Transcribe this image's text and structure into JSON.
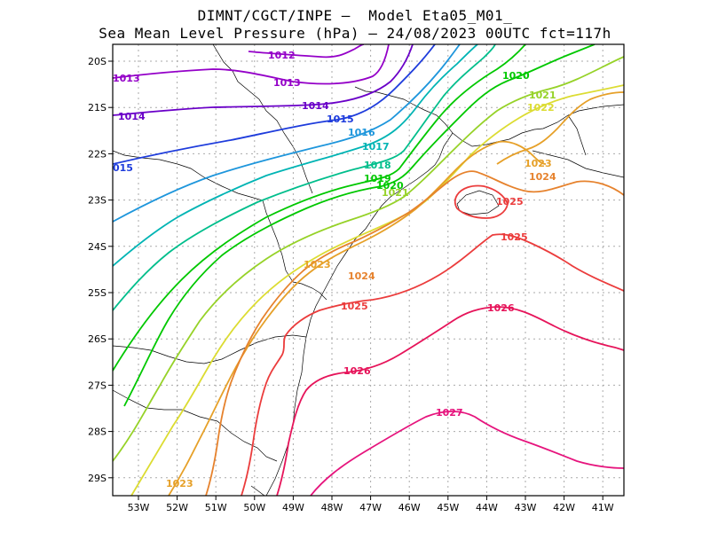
{
  "title": {
    "line1": "DIMNT/CGCT/INPE –  Model Eta05_M01_",
    "line2": "Sea Mean Level Pressure (hPa) – 24/08/2023 00UTC fct=117h"
  },
  "axes": {
    "lat_labels": [
      "20S",
      "21S",
      "22S",
      "23S",
      "24S",
      "25S",
      "26S",
      "27S",
      "28S",
      "29S"
    ],
    "lon_labels": [
      "53W",
      "52W",
      "51W",
      "50W",
      "49W",
      "48W",
      "47W",
      "46W",
      "45W",
      "44W",
      "43W",
      "42W",
      "41W"
    ]
  },
  "contour_labels": [
    {
      "text": "1012",
      "color": "#9400c8"
    },
    {
      "text": "1013",
      "color": "#9400c8"
    },
    {
      "text": "1013",
      "color": "#9400c8"
    },
    {
      "text": "1014",
      "color": "#6a00c8"
    },
    {
      "text": "1014",
      "color": "#6a00c8"
    },
    {
      "text": "1015",
      "color": "#1e3cdc"
    },
    {
      "text": "015",
      "color": "#1e3cdc"
    },
    {
      "text": "1016",
      "color": "#1e96dc"
    },
    {
      "text": "1017",
      "color": "#00b4b4"
    },
    {
      "text": "1018",
      "color": "#00be8c"
    },
    {
      "text": "1019",
      "color": "#00c800"
    },
    {
      "text": "1020",
      "color": "#00c800"
    },
    {
      "text": "1020",
      "color": "#00c800"
    },
    {
      "text": "1021",
      "color": "#96d228"
    },
    {
      "text": "1021",
      "color": "#96d228"
    },
    {
      "text": "1022",
      "color": "#dcdc32"
    },
    {
      "text": "1023",
      "color": "#e6a028"
    },
    {
      "text": "1023",
      "color": "#e6a028"
    },
    {
      "text": "1023",
      "color": "#e6a028"
    },
    {
      "text": "1024",
      "color": "#e6822d"
    },
    {
      "text": "1024",
      "color": "#e6822d"
    },
    {
      "text": "1025",
      "color": "#eb3c3c"
    },
    {
      "text": "1025",
      "color": "#eb3c3c"
    },
    {
      "text": "1025",
      "color": "#eb3c3c"
    },
    {
      "text": "1026",
      "color": "#e6145a"
    },
    {
      "text": "1026",
      "color": "#e6145a"
    },
    {
      "text": "1027",
      "color": "#e6147d"
    }
  ]
}
